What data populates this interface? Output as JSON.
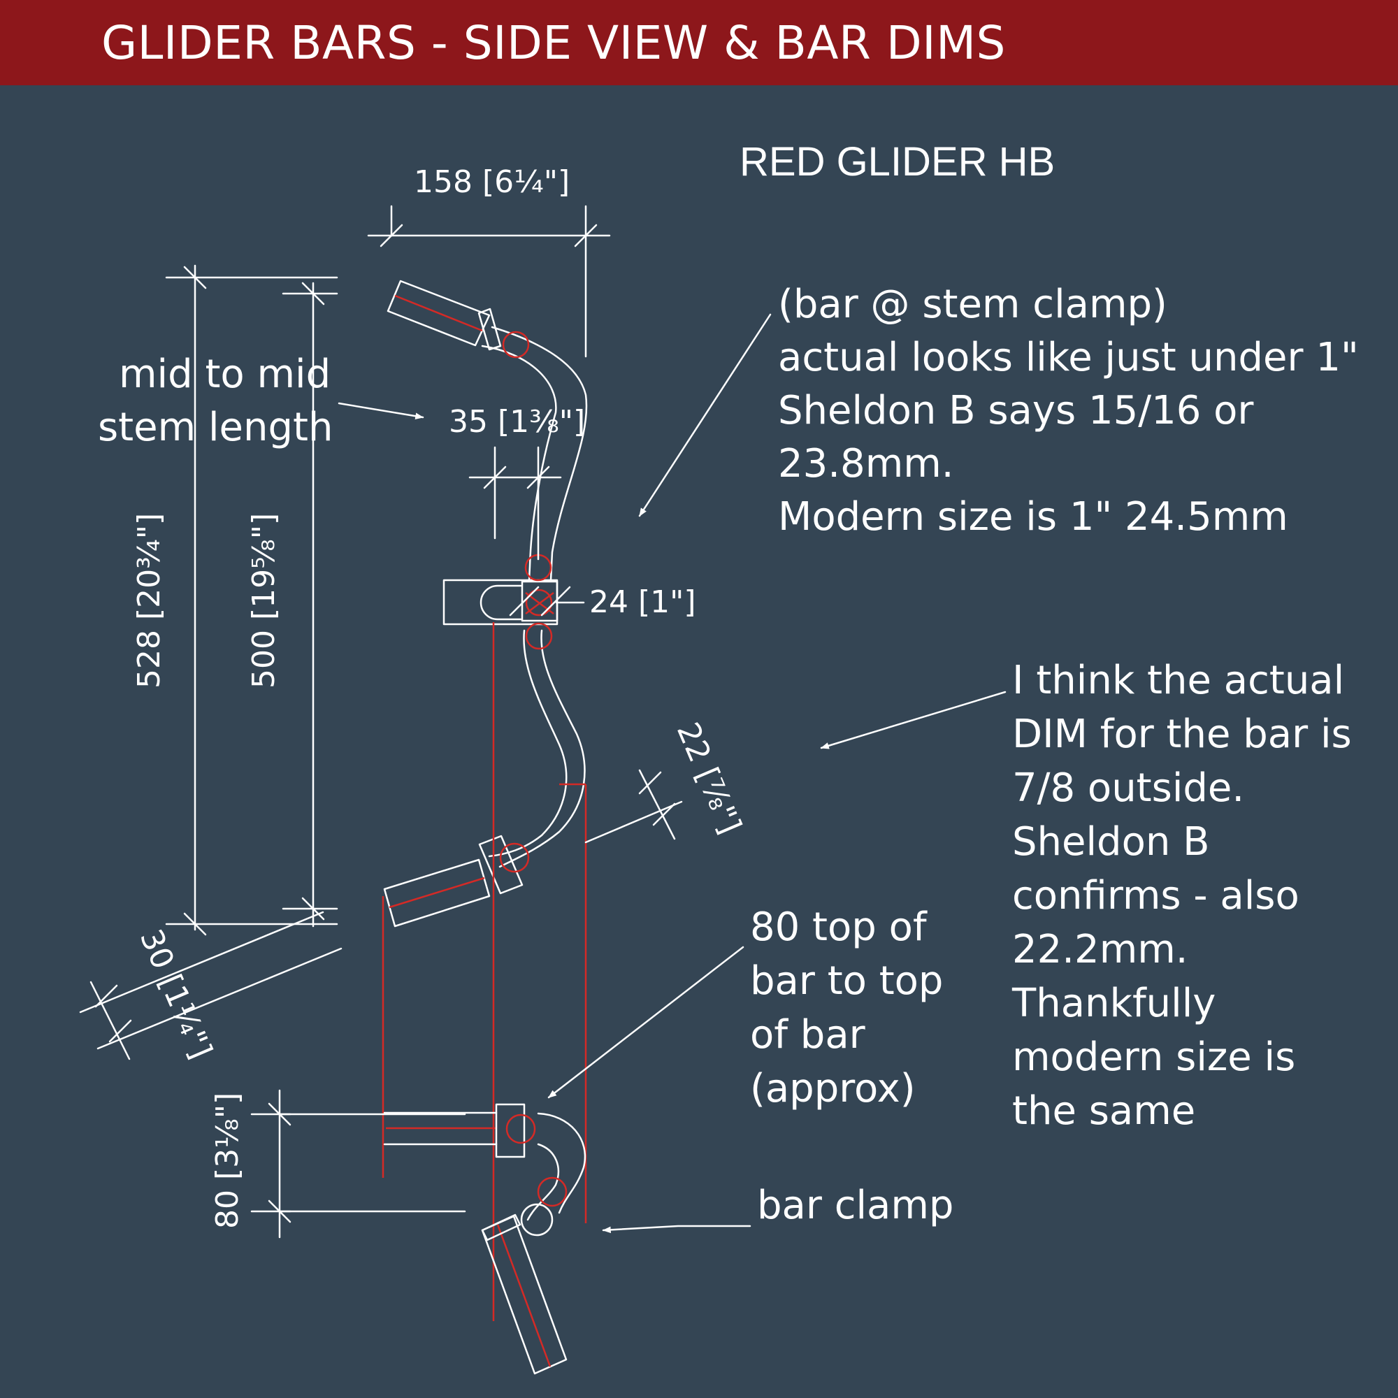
{
  "header": {
    "title": "GLIDER BARS - SIDE VIEW & BAR DIMS"
  },
  "drawing": {
    "subtitle": "RED GLIDER HB",
    "dimensions": {
      "width_158": "158 [6¼\"]",
      "offset_35": "35 [1⅜\"]",
      "clamp_24": "24 [1\"]",
      "tube_22": "22 [⅞\"]",
      "height_528": "528 [20¾\"]",
      "height_500": "500 [19⅝\"]",
      "offset_30": "30 [1¼\"]",
      "drop_80": "80 [3⅛\"]"
    },
    "notes": {
      "mid_to_mid": [
        "mid to mid",
        "stem length"
      ],
      "stem_clamp": [
        "(bar @ stem clamp)",
        "actual looks like just under 1\"",
        "Sheldon B says 15/16 or",
        "23.8mm.",
        "Modern size is 1\" 24.5mm"
      ],
      "bar_dim": [
        "I think the actual",
        "DIM for the bar is",
        "7/8 outside.",
        "Sheldon B",
        "confirms - also",
        "22.2mm.",
        "Thankfully",
        "modern size is",
        "the same"
      ],
      "top_to_top": [
        "80 top of",
        "bar to top",
        "of bar",
        "(approx)"
      ],
      "bar_clamp": "bar clamp"
    },
    "colors": {
      "background": "#344554",
      "header": "#8d171b",
      "line": "#ffffff",
      "construction": "#d42a26"
    }
  }
}
